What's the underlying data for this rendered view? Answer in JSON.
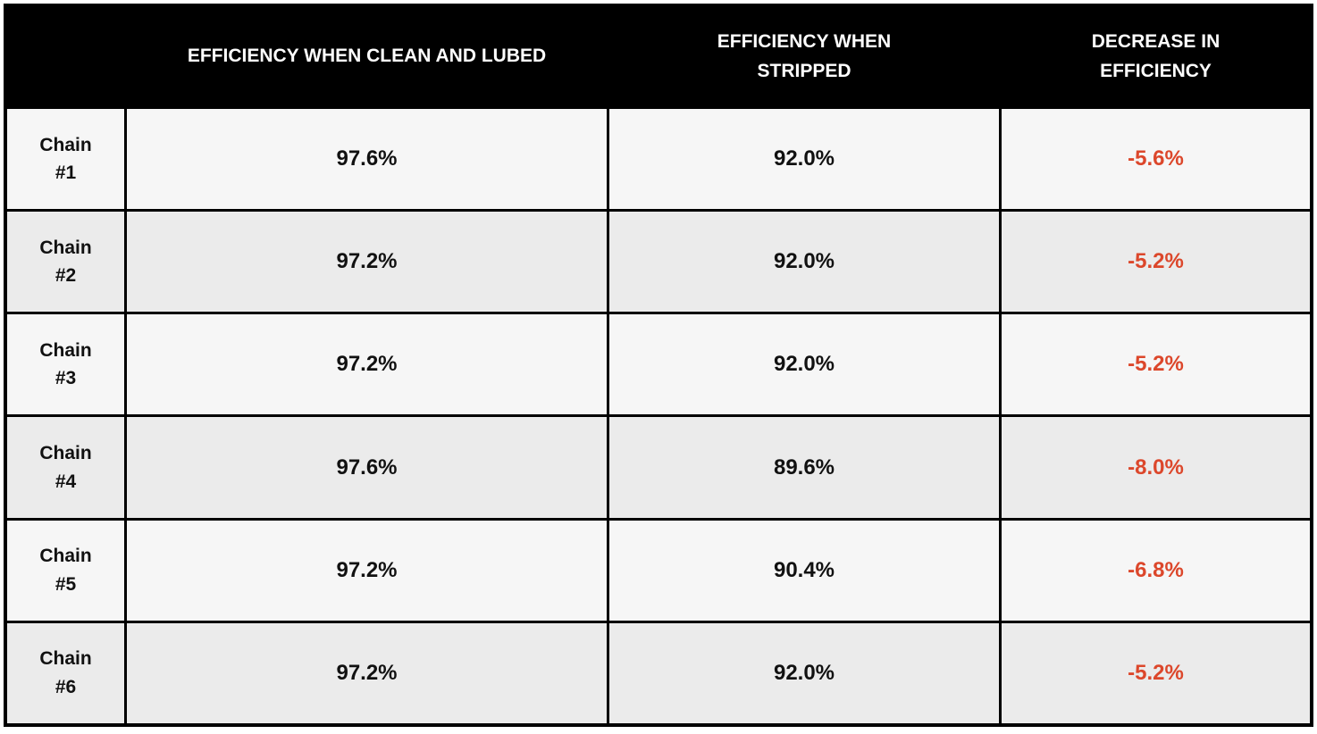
{
  "colors": {
    "header_bg": "#000000",
    "header_text": "#ffffff",
    "row_light": "#f6f6f6",
    "row_dark": "#ebebeb",
    "value_text": "#111111",
    "decrease_text": "#dc472b",
    "border": "#000000"
  },
  "table": {
    "headers": {
      "chain": "",
      "clean": "EFFICIENCY WHEN CLEAN AND LUBED",
      "stripped": "EFFICIENCY WHEN STRIPPED",
      "decrease": "DECREASE IN EFFICIENCY"
    },
    "rows": [
      {
        "label": "Chain #1",
        "clean": "97.6%",
        "stripped": "92.0%",
        "decrease": "-5.6%"
      },
      {
        "label": "Chain #2",
        "clean": "97.2%",
        "stripped": "92.0%",
        "decrease": "-5.2%"
      },
      {
        "label": "Chain #3",
        "clean": "97.2%",
        "stripped": "92.0%",
        "decrease": "-5.2%"
      },
      {
        "label": "Chain #4",
        "clean": "97.6%",
        "stripped": "89.6%",
        "decrease": "-8.0%"
      },
      {
        "label": "Chain #5",
        "clean": "97.2%",
        "stripped": "90.4%",
        "decrease": "-6.8%"
      },
      {
        "label": "Chain #6",
        "clean": "97.2%",
        "stripped": "92.0%",
        "decrease": "-5.2%"
      }
    ]
  },
  "chart_data": {
    "type": "table",
    "categories": [
      "Chain #1",
      "Chain #2",
      "Chain #3",
      "Chain #4",
      "Chain #5",
      "Chain #6"
    ],
    "series": [
      {
        "name": "EFFICIENCY WHEN CLEAN AND LUBED",
        "unit": "%",
        "values": [
          97.6,
          97.2,
          97.2,
          97.6,
          97.2,
          97.2
        ]
      },
      {
        "name": "EFFICIENCY WHEN STRIPPED",
        "unit": "%",
        "values": [
          92.0,
          92.0,
          92.0,
          89.6,
          90.4,
          92.0
        ]
      },
      {
        "name": "DECREASE IN EFFICIENCY",
        "unit": "%",
        "values": [
          -5.6,
          -5.2,
          -5.2,
          -8.0,
          -6.8,
          -5.2
        ]
      }
    ],
    "title": "",
    "layout": {
      "header_style": "black-band",
      "row_striping": "alternating",
      "grid": true
    }
  }
}
